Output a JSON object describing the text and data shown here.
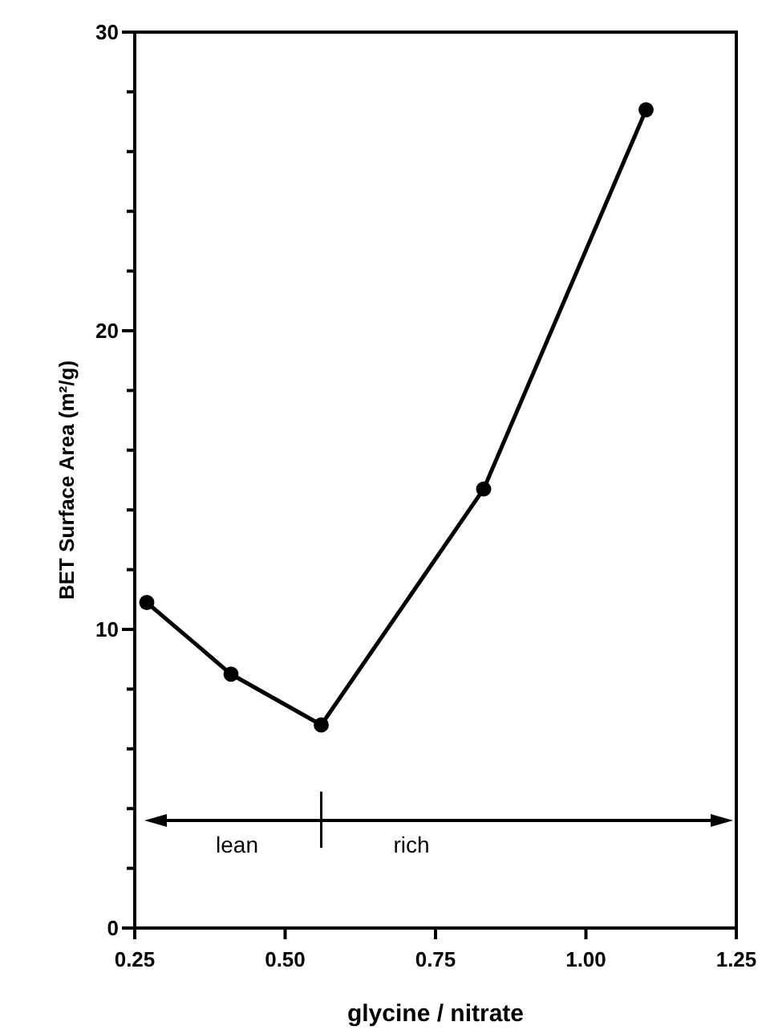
{
  "chart_data": {
    "type": "line",
    "xlabel": "glycine / nitrate",
    "ylabel": "BET Surface Area (m²/g)",
    "x": [
      0.27,
      0.41,
      0.56,
      0.83,
      1.1
    ],
    "series": [
      {
        "color": "#000000",
        "values": [
          10.9,
          8.5,
          6.8,
          14.7,
          27.4
        ]
      }
    ],
    "marker": "circle",
    "line_style": "solid",
    "xlim": [
      0.25,
      1.25
    ],
    "xticks": [
      0.25,
      {
        "value": 0.5,
        "label": "0.50"
      },
      0.75,
      {
        "value": 1.0,
        "label": "1.00"
      },
      1.25
    ],
    "ylim": [
      0,
      30
    ],
    "yticks": [
      0,
      {
        "value": 2,
        "label": null
      },
      {
        "value": 4,
        "label": null
      },
      {
        "value": 6,
        "label": null
      },
      {
        "value": 8,
        "label": null
      },
      10,
      {
        "value": 12,
        "label": null
      },
      {
        "value": 14,
        "label": null
      },
      {
        "value": 16,
        "label": null
      },
      {
        "value": 18,
        "label": null
      },
      20,
      {
        "value": 22,
        "label": null
      },
      {
        "value": 24,
        "label": null
      },
      {
        "value": 26,
        "label": null
      },
      {
        "value": 28,
        "label": null
      },
      30
    ],
    "annotations": [
      "lean",
      "rich"
    ],
    "grid": false
  }
}
